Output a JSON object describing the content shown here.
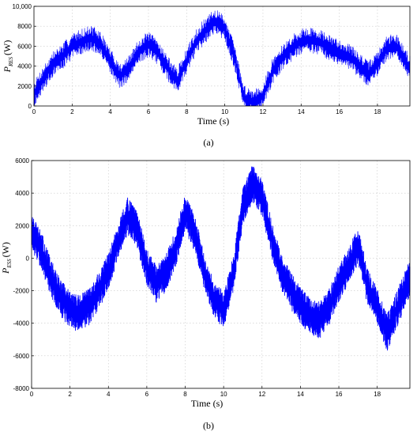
{
  "chart_data": [
    {
      "type": "line",
      "panel_label": "(a)",
      "xlabel": "Time (s)",
      "ylabel_main": "P",
      "ylabel_sub": "RES",
      "ylabel_unit": "(W)",
      "xlim": [
        0,
        19.7
      ],
      "ylim": [
        0,
        10000
      ],
      "xticks": [
        0,
        2,
        4,
        6,
        8,
        10,
        12,
        14,
        16,
        18
      ],
      "xtick_labels": [
        "0",
        "2",
        "4",
        "6",
        "8",
        "10",
        "12",
        "14",
        "16",
        "18"
      ],
      "yticks": [
        0,
        2000,
        4000,
        6000,
        8000,
        10000
      ],
      "ytick_labels": [
        "0",
        "2000",
        "4000",
        "6000",
        "8000",
        "10,000"
      ],
      "grid": true,
      "color": "#0000ff",
      "series": [
        {
          "x": [
            0,
            0.5,
            1,
            1.5,
            2,
            2.5,
            3,
            3.5,
            4,
            4.5,
            5,
            5.5,
            6,
            6.5,
            7,
            7.5,
            8,
            8.5,
            9,
            9.5,
            10,
            10.5,
            11,
            11.5,
            12,
            12.5,
            13,
            13.5,
            14,
            14.5,
            15,
            15.5,
            16,
            16.5,
            17,
            17.5,
            18,
            18.5,
            19,
            19.7
          ],
          "y": [
            1200,
            2800,
            4200,
            5000,
            6000,
            6500,
            6800,
            6200,
            4500,
            3000,
            3800,
            5500,
            6200,
            5400,
            3800,
            2500,
            4500,
            6500,
            7600,
            8500,
            7800,
            5000,
            800,
            400,
            1000,
            3500,
            4800,
            5800,
            6500,
            6600,
            6400,
            5800,
            5400,
            5000,
            4200,
            3200,
            4200,
            5800,
            6000,
            3800
          ],
          "amplitude": 1300
        }
      ]
    },
    {
      "type": "line",
      "panel_label": "(b)",
      "xlabel": "Time (s)",
      "ylabel_main": "P",
      "ylabel_sub": "ESS",
      "ylabel_unit": "(W)",
      "xlim": [
        0,
        19.7
      ],
      "ylim": [
        -8000,
        6000
      ],
      "xticks": [
        0,
        2,
        4,
        6,
        8,
        10,
        12,
        14,
        16,
        18
      ],
      "xtick_labels": [
        "0",
        "2",
        "4",
        "6",
        "8",
        "10",
        "12",
        "14",
        "16",
        "18"
      ],
      "yticks": [
        -8000,
        -6000,
        -4000,
        -2000,
        0,
        2000,
        4000,
        6000
      ],
      "ytick_labels": [
        "-8000",
        "-6000",
        "-4000",
        "-2000",
        "0",
        "2000",
        "4000",
        "6000"
      ],
      "grid": true,
      "color": "#0000ff",
      "series": [
        {
          "x": [
            0,
            0.5,
            1,
            1.5,
            2,
            2.5,
            3,
            3.5,
            4,
            4.5,
            5,
            5.5,
            6,
            6.5,
            7,
            7.5,
            8,
            8.5,
            9,
            9.5,
            10,
            10.5,
            11,
            11.5,
            12,
            12.5,
            13,
            13.5,
            14,
            14.5,
            15,
            15.5,
            16,
            16.5,
            17,
            17.5,
            18,
            18.5,
            19,
            19.7
          ],
          "y": [
            1500,
            500,
            -1200,
            -2400,
            -3200,
            -3400,
            -3000,
            -2000,
            -800,
            1000,
            2600,
            1800,
            -600,
            -1600,
            -900,
            600,
            2800,
            1500,
            -800,
            -2500,
            -3200,
            -1000,
            3200,
            4600,
            3700,
            1200,
            -800,
            -2000,
            -2900,
            -3600,
            -3800,
            -3000,
            -1600,
            -500,
            800,
            -1800,
            -3000,
            -4600,
            -3200,
            -1200
          ],
          "amplitude": 1150
        }
      ]
    }
  ]
}
